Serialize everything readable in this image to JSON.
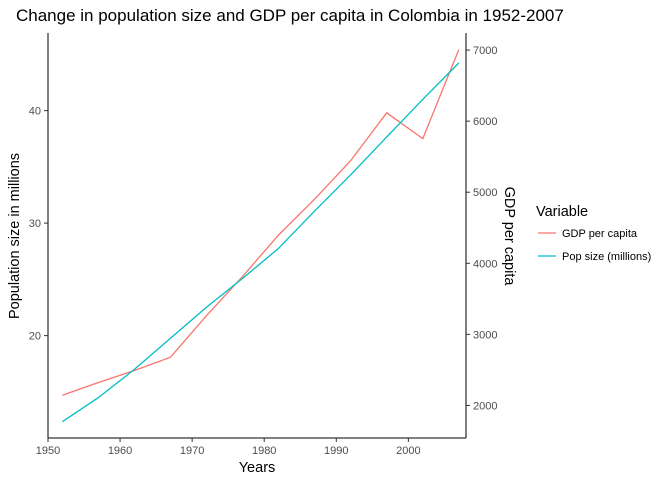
{
  "chart_data": {
    "type": "line",
    "title": "Change in population size and GDP per capita in Colombia in 1952-2007",
    "xlabel": "Years",
    "ylabel_left": "Population size in millions",
    "ylabel_right": "GDP per capita",
    "x": [
      1952,
      1957,
      1962,
      1967,
      1972,
      1977,
      1982,
      1987,
      1992,
      1997,
      2002,
      2007
    ],
    "xlim": [
      1950,
      2008
    ],
    "x_ticks": [
      1950,
      1960,
      1970,
      1980,
      1990,
      2000
    ],
    "ylim_left": [
      10.9,
      46.9
    ],
    "y_ticks_left": [
      20,
      30,
      40
    ],
    "ylim_right": [
      1542,
      7240
    ],
    "y_ticks_right": [
      2000,
      3000,
      4000,
      5000,
      6000,
      7000
    ],
    "grid": false,
    "legend": {
      "title": "Variable",
      "placement": "right"
    },
    "series": [
      {
        "name": "GDP per capita",
        "axis": "right",
        "color": "#F8766D",
        "values": [
          2144,
          2323,
          2492,
          2679,
          3264,
          3816,
          4398,
          4903,
          5445,
          6117,
          5755,
          7007
        ]
      },
      {
        "name": "Pop size (millions)",
        "axis": "left",
        "color": "#00BFC4",
        "values": [
          12.35,
          14.49,
          17.01,
          19.76,
          22.54,
          25.09,
          27.76,
          31.09,
          34.3,
          37.66,
          41.01,
          44.23
        ]
      }
    ]
  }
}
